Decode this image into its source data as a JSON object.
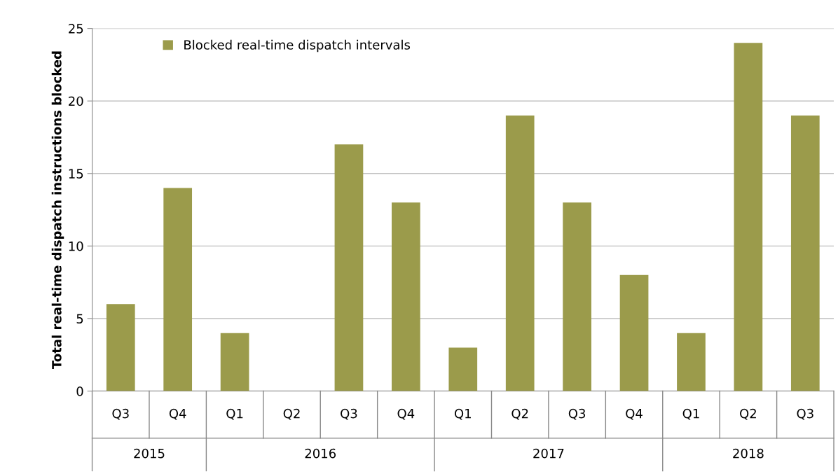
{
  "chart_data": {
    "type": "bar",
    "ylabel": "Total real-time dispatch instructions blocked",
    "categories": [
      "Q3",
      "Q4",
      "Q1",
      "Q2",
      "Q3",
      "Q4",
      "Q1",
      "Q2",
      "Q3",
      "Q4",
      "Q1",
      "Q2",
      "Q3"
    ],
    "series": [
      {
        "name": "Blocked real-time dispatch intervals",
        "color": "#9b9b4b",
        "values": [
          6,
          14,
          4,
          0,
          17,
          13,
          3,
          19,
          13,
          8,
          4,
          24,
          19
        ]
      }
    ],
    "annotations": [
      "2015",
      "2016",
      "2017",
      "2018"
    ],
    "ylim": [
      0,
      25
    ],
    "yticks": [
      0,
      5,
      10,
      15,
      20,
      25
    ],
    "grid": "y",
    "legend": "top left"
  }
}
